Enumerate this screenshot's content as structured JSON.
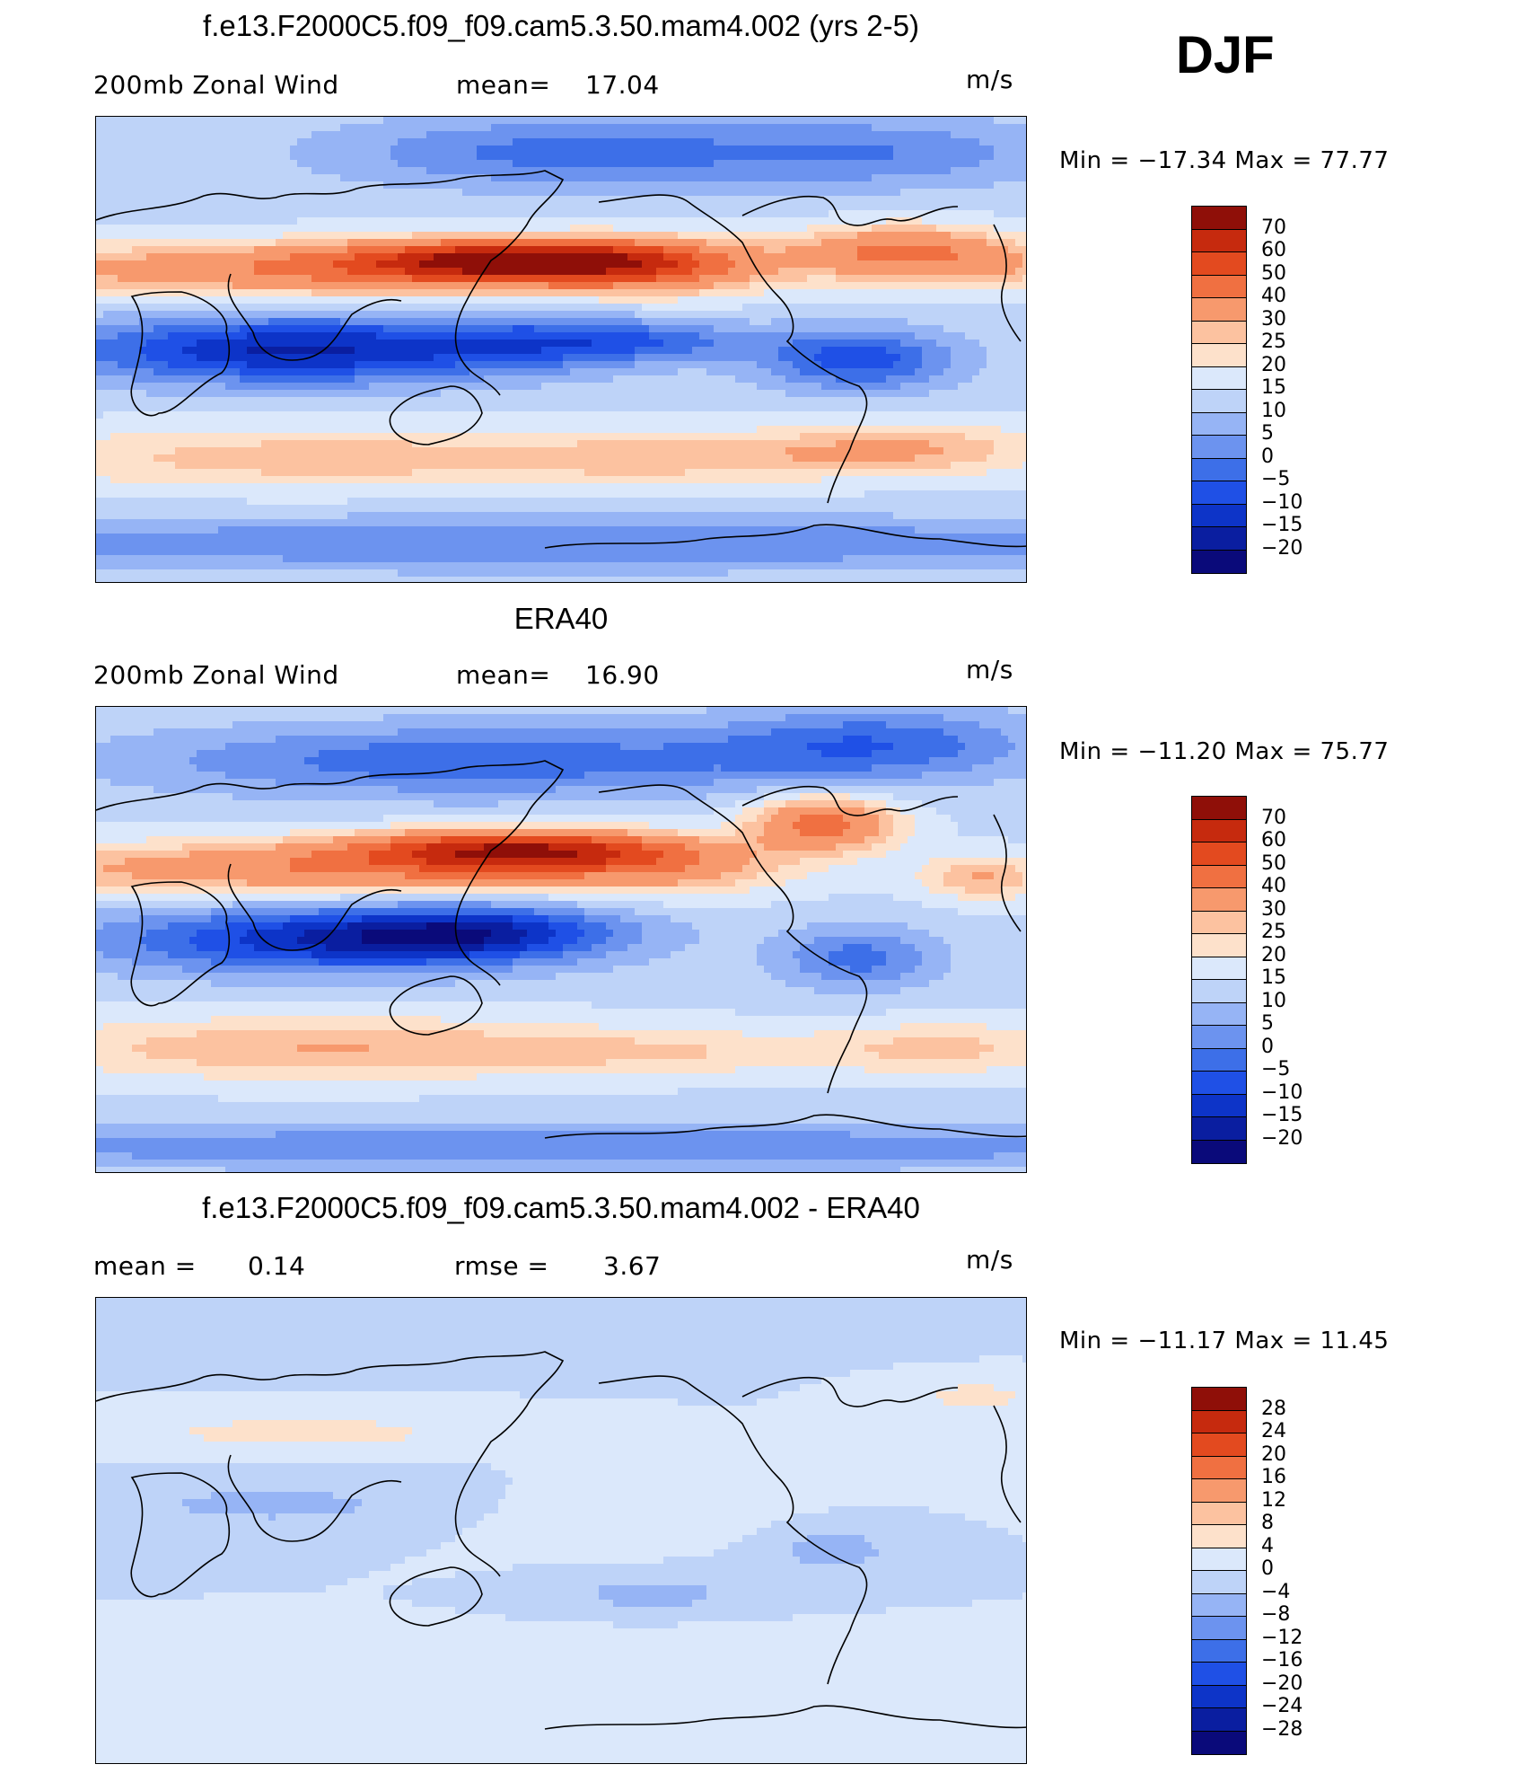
{
  "season": "DJF",
  "units": "m/s",
  "palette_abs": [
    "#0a0a7a",
    "#0a1ea0",
    "#0d34c8",
    "#1f50e6",
    "#3d6fe8",
    "#6c93ef",
    "#96b4f5",
    "#bed3f8",
    "#dbe8fb",
    "#fde1cb",
    "#fcc2a0",
    "#f7996d",
    "#f07041",
    "#e34a1f",
    "#c62a0e",
    "#8f0f08"
  ],
  "palette_diff": [
    "#0a0a7a",
    "#0a1ea0",
    "#0d34c8",
    "#1f50e6",
    "#3d6fe8",
    "#6c93ef",
    "#96b4f5",
    "#bed3f8",
    "#dbe8fb",
    "#fde1cb",
    "#fcc2a0",
    "#f7996d",
    "#f07041",
    "#e34a1f",
    "#c62a0e",
    "#8f0f08"
  ],
  "panels": [
    {
      "title": "f.e13.F2000C5.f09_f09.cam5.3.50.mam4.002 (yrs 2-5)",
      "left_label": "200mb  Zonal  Wind",
      "stat_label": "mean=",
      "stat_value": "17.04",
      "stat2_label": "",
      "stat2_value": "",
      "minmax": "Min  =  −17.34  Max  =     77.77",
      "field": "model"
    },
    {
      "title": "ERA40",
      "left_label": "200mb  Zonal  Wind",
      "stat_label": "mean=",
      "stat_value": "16.90",
      "stat2_label": "",
      "stat2_value": "",
      "minmax": "Min  =  −11.20  Max  =     75.77",
      "field": "obs"
    },
    {
      "title": "f.e13.F2000C5.f09_f09.cam5.3.50.mam4.002 - ERA40",
      "left_label": "",
      "stat_label": "mean  =",
      "stat_value": "0.14",
      "stat2_label": "rmse  =",
      "stat2_value": "3.67",
      "minmax": "Min  =  −11.17  Max  =     11.45",
      "field": "diff"
    }
  ],
  "colorbar_abs_labels": [
    "70",
    "60",
    "50",
    "40",
    "30",
    "25",
    "20",
    "15",
    "10",
    "5",
    "0",
    "−5",
    "−10",
    "−15",
    "−20"
  ],
  "colorbar_diff_labels": [
    "28",
    "24",
    "20",
    "16",
    "12",
    "8",
    "4",
    "0",
    "−4",
    "−8",
    "−12",
    "−16",
    "−20",
    "−24",
    "−28"
  ]
}
